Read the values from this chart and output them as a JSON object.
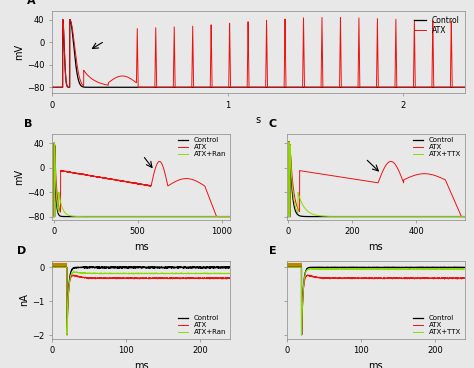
{
  "background_color": "#e8e8e8",
  "colors": {
    "control": "#000000",
    "atx": "#ee1111",
    "atx_ran": "#88dd00",
    "atx_ttx": "#88dd00"
  },
  "legend_control": "Control",
  "legend_atx": "ATX",
  "legend_ran": "ATX+Ran",
  "legend_ttx": "ATX+TTX",
  "panelA": {
    "xlabel": "s",
    "ylabel": "mV",
    "ylim": [
      -90,
      55
    ],
    "xlim": [
      0,
      2.35
    ],
    "yticks": [
      -80,
      -40,
      0,
      40
    ],
    "xticks": [
      0,
      1,
      2
    ]
  },
  "panelB": {
    "xlabel": "ms",
    "ylabel": "mV",
    "ylim": [
      -85,
      55
    ],
    "xlim": [
      -10,
      1050
    ],
    "yticks": [
      -80,
      -40,
      0,
      40
    ],
    "xticks": [
      0,
      500,
      1000
    ]
  },
  "panelC": {
    "xlabel": "ms",
    "ylim": [
      -85,
      55
    ],
    "xlim": [
      -5,
      550
    ],
    "yticks": [
      -80,
      -40,
      0,
      40
    ],
    "xticks": [
      0,
      200,
      400
    ]
  },
  "panelD": {
    "xlabel": "ms",
    "ylabel": "nA",
    "ylim": [
      -2.1,
      0.2
    ],
    "xlim": [
      0,
      240
    ],
    "yticks": [
      -2,
      -1,
      0
    ],
    "xticks": [
      0,
      100,
      200
    ]
  },
  "panelE": {
    "xlabel": "ms",
    "ylim": [
      -2.1,
      0.2
    ],
    "xlim": [
      0,
      240
    ],
    "yticks": [
      -2,
      -1,
      0
    ],
    "xticks": [
      0,
      100,
      200
    ]
  }
}
